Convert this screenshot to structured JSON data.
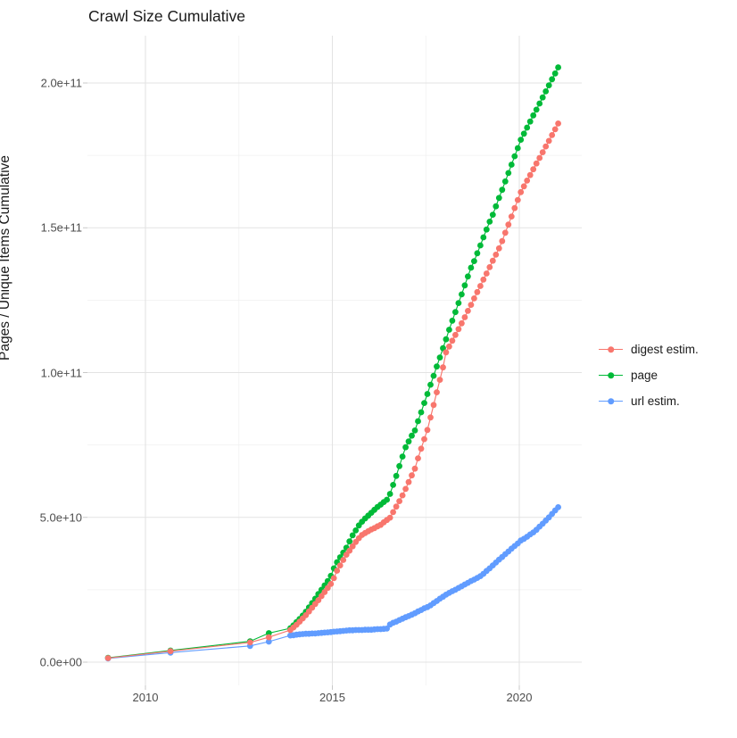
{
  "title": "Crawl Size Cumulative",
  "y_axis": {
    "title": "Pages / Unique Items Cumulative",
    "tick_labels": [
      "0.0e+00",
      "5.0e+10",
      "1.0e+11",
      "1.5e+11",
      "2.0e+11"
    ],
    "tick_values_billions": [
      0,
      50,
      100,
      150,
      200
    ],
    "minor_tick_values_billions": [
      25,
      75,
      125,
      175
    ]
  },
  "x_axis": {
    "tick_labels": [
      "2010",
      "2015",
      "2020"
    ],
    "tick_values": [
      2010,
      2015,
      2020
    ],
    "minor_tick_values": [
      2012.5,
      2017.5
    ]
  },
  "legend": {
    "items": [
      {
        "label": "digest estim.",
        "color": "#F8766D"
      },
      {
        "label": "page",
        "color": "#00BA38"
      },
      {
        "label": "url estim.",
        "color": "#619CFF"
      }
    ]
  },
  "colors": {
    "background": "#ffffff",
    "grid_major": "#e3e3e3",
    "grid_minor": "#f0f0f0",
    "axis_text": "#4d4d4d",
    "title_text": "#1a1a1a",
    "digest": "#F8766D",
    "page": "#00BA38",
    "url": "#619CFF"
  },
  "chart_data": {
    "type": "scatter",
    "title": "Crawl Size Cumulative",
    "xlabel": "",
    "ylabel": "Pages / Unique Items Cumulative",
    "value_unit": "pages, values in billions (1e9)",
    "xlim": [
      2008.45,
      2021.67
    ],
    "ylim_billions": [
      -8.8,
      218
    ],
    "grid": true,
    "legend_position": "right",
    "draw_order": [
      1,
      2,
      0
    ],
    "series": [
      {
        "name": "digest estim.",
        "color": "#F8766D",
        "early_points": [
          [
            2009.0,
            1.4
          ],
          [
            2010.67,
            3.8
          ],
          [
            2012.8,
            6.8
          ],
          [
            2013.3,
            8.6
          ]
        ],
        "monthly_start_year": 2013.875,
        "monthly_step_years": 0.083333,
        "monthly_values_billions": [
          11.1,
          12.0,
          12.9,
          14.0,
          15.1,
          16.2,
          17.5,
          18.8,
          20.1,
          21.4,
          22.8,
          24.2,
          25.6,
          27.0,
          29.0,
          31.6,
          33.4,
          35.3,
          37.1,
          38.5,
          40.0,
          41.5,
          42.8,
          43.9,
          44.6,
          45.2,
          45.8,
          46.3,
          46.9,
          47.4,
          48.3,
          49.1,
          49.9,
          51.8,
          53.7,
          55.6,
          57.6,
          59.8,
          62.2,
          64.5,
          66.8,
          70.4,
          73.7,
          77.0,
          80.2,
          84.5,
          88.8,
          93.2,
          97.5,
          101.8,
          107.0,
          109.0,
          111.0,
          113.0,
          115.0,
          117.0,
          119.1,
          121.3,
          123.4,
          125.6,
          127.8,
          129.9,
          132.1,
          134.2,
          136.4,
          138.6,
          140.7,
          142.9,
          145.4,
          148.3,
          151.1,
          153.9,
          156.8,
          159.6,
          162.3,
          164.3,
          166.3,
          168.2,
          170.2,
          172.2,
          174.1,
          176.1,
          178.1,
          180.0,
          182.0,
          184.0,
          186.0
        ]
      },
      {
        "name": "page",
        "color": "#00BA38",
        "early_points": [
          [
            2009.0,
            1.5
          ],
          [
            2010.67,
            4.0
          ],
          [
            2012.8,
            7.2
          ],
          [
            2013.3,
            10.0
          ]
        ],
        "monthly_start_year": 2013.875,
        "monthly_step_years": 0.083333,
        "monthly_values_billions": [
          11.7,
          12.7,
          13.8,
          14.9,
          16.1,
          17.4,
          18.9,
          20.4,
          21.9,
          23.5,
          25.0,
          26.5,
          28.0,
          29.8,
          32.4,
          34.5,
          36.2,
          37.8,
          39.5,
          41.7,
          43.8,
          45.5,
          47.2,
          48.5,
          49.6,
          50.6,
          51.6,
          52.6,
          53.6,
          54.4,
          55.3,
          56.1,
          58.1,
          61.2,
          64.3,
          67.7,
          71.0,
          74.2,
          76.2,
          78.2,
          80.0,
          83.2,
          86.3,
          89.5,
          92.6,
          95.8,
          98.9,
          102.1,
          105.2,
          108.4,
          111.5,
          114.8,
          117.9,
          120.9,
          124.0,
          127.0,
          130.1,
          133.2,
          136.2,
          138.5,
          141.2,
          143.9,
          146.7,
          149.4,
          152.1,
          154.5,
          157.4,
          160.3,
          163.1,
          166.0,
          168.9,
          171.8,
          174.7,
          177.5,
          180.4,
          182.5,
          184.6,
          186.7,
          188.8,
          190.8,
          192.9,
          195.0,
          197.1,
          199.2,
          201.3,
          203.3,
          205.4
        ]
      },
      {
        "name": "url estim.",
        "color": "#619CFF",
        "early_points": [
          [
            2009.0,
            1.3
          ],
          [
            2010.67,
            3.3
          ],
          [
            2012.8,
            5.6
          ],
          [
            2013.3,
            7.1
          ]
        ],
        "monthly_start_year": 2013.875,
        "monthly_step_years": 0.083333,
        "monthly_values_billions": [
          9.2,
          9.3,
          9.5,
          9.6,
          9.7,
          9.8,
          9.8,
          9.9,
          9.9,
          10.0,
          10.1,
          10.2,
          10.3,
          10.4,
          10.5,
          10.6,
          10.7,
          10.8,
          10.9,
          11.0,
          11.0,
          11.1,
          11.1,
          11.1,
          11.2,
          11.2,
          11.2,
          11.3,
          11.4,
          11.4,
          11.5,
          11.6,
          13.0,
          13.6,
          14.0,
          14.5,
          15.0,
          15.5,
          15.9,
          16.4,
          16.9,
          17.5,
          18.0,
          18.6,
          19.0,
          19.6,
          20.4,
          21.1,
          21.9,
          22.6,
          23.3,
          23.9,
          24.5,
          25.0,
          25.6,
          26.2,
          26.8,
          27.4,
          28.0,
          28.5,
          29.1,
          29.7,
          30.5,
          31.5,
          32.4,
          33.4,
          34.4,
          35.4,
          36.3,
          37.3,
          38.2,
          39.2,
          40.1,
          41.0,
          42.0,
          42.6,
          43.3,
          44.1,
          44.8,
          45.7,
          46.8,
          47.8,
          48.9,
          50.0,
          51.2,
          52.4,
          53.5
        ]
      }
    ]
  }
}
